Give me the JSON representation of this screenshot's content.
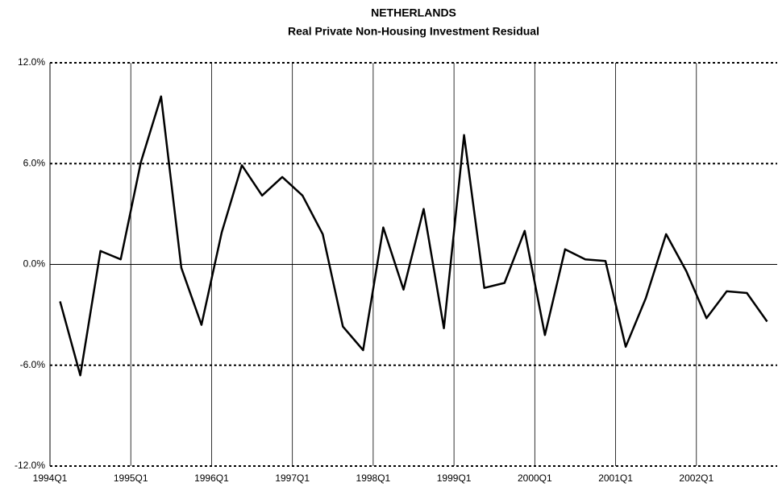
{
  "chart_data": {
    "type": "line",
    "title": "NETHERLANDS",
    "subtitle": "Real Private Non-Housing Investment Residual",
    "categories": [
      "1994Q1",
      null,
      null,
      null,
      "1995Q1",
      null,
      null,
      null,
      "1996Q1",
      null,
      null,
      null,
      "1997Q1",
      null,
      null,
      null,
      "1998Q1",
      null,
      null,
      null,
      "1999Q1",
      null,
      null,
      null,
      "2000Q1",
      null,
      null,
      null,
      "2001Q1",
      null,
      null,
      null,
      "2002Q1",
      null,
      null,
      null
    ],
    "series": [
      {
        "name": "Residual",
        "color": "#000000",
        "values": [
          -2.2,
          -6.6,
          0.8,
          0.3,
          6.1,
          10.0,
          -0.2,
          -3.6,
          1.9,
          5.9,
          4.1,
          5.2,
          4.1,
          1.8,
          -3.7,
          -5.1,
          2.2,
          -1.5,
          3.3,
          -3.8,
          7.7,
          -1.4,
          -1.1,
          2.0,
          -4.2,
          0.9,
          0.3,
          0.2,
          -4.9,
          -2.0,
          1.8,
          -0.4,
          -3.2,
          -1.6,
          -1.7,
          -3.4
        ]
      }
    ],
    "ylim": [
      -12,
      12
    ],
    "yticks": [
      {
        "value": -12,
        "label": "-12.0%"
      },
      {
        "value": -6,
        "label": "-6.0%"
      },
      {
        "value": 0,
        "label": "0.0%"
      },
      {
        "value": 6,
        "label": "6.0%"
      },
      {
        "value": 12,
        "label": "12.0%"
      }
    ],
    "grid": true
  }
}
